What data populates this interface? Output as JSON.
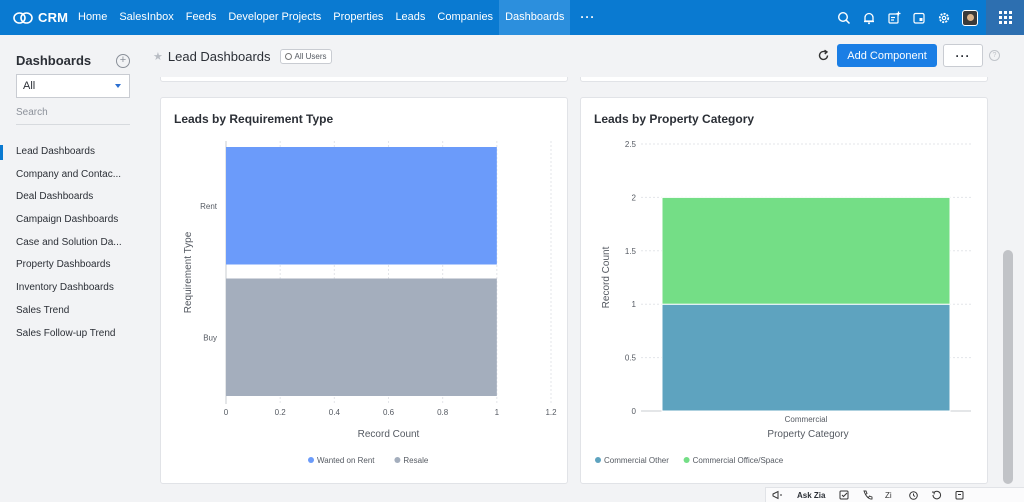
{
  "brand": {
    "name": "CRM"
  },
  "nav": {
    "items": [
      {
        "label": "Home",
        "active": false
      },
      {
        "label": "SalesInbox",
        "active": false
      },
      {
        "label": "Feeds",
        "active": false
      },
      {
        "label": "Developer Projects",
        "active": false
      },
      {
        "label": "Properties",
        "active": false
      },
      {
        "label": "Leads",
        "active": false
      },
      {
        "label": "Companies",
        "active": false
      },
      {
        "label": "Dashboards",
        "active": true
      }
    ],
    "more": "···"
  },
  "sidebar": {
    "title": "Dashboards",
    "filter_value": "All",
    "search_placeholder": "Search",
    "items": [
      {
        "label": "Lead Dashboards",
        "active": true
      },
      {
        "label": "Company and Contac...",
        "active": false
      },
      {
        "label": "Deal Dashboards",
        "active": false
      },
      {
        "label": "Campaign Dashboards",
        "active": false
      },
      {
        "label": "Case and Solution Da...",
        "active": false
      },
      {
        "label": "Property Dashboards",
        "active": false
      },
      {
        "label": "Inventory Dashboards",
        "active": false
      },
      {
        "label": "Sales Trend",
        "active": false
      },
      {
        "label": "Sales Follow-up Trend",
        "active": false
      }
    ]
  },
  "header": {
    "title": "Lead Dashboards",
    "visibility": "All Users",
    "add_button": "Add Component",
    "more": "···",
    "help": "?"
  },
  "bottom_bar": {
    "ask_zia": "Ask Zia"
  },
  "colors": {
    "nav_bg": "#0a7ad1",
    "accent": "#1a7ee5",
    "wanted_on_rent": "#6b9bfa",
    "resale": "#a4aebd",
    "commercial_other": "#5ea3bf",
    "commercial_office": "#74de86"
  },
  "chart_data": [
    {
      "type": "bar",
      "orientation": "horizontal",
      "stacked": true,
      "title": "Leads by Requirement Type",
      "xlabel": "Record Count",
      "ylabel": "Requirement Type",
      "categories": [
        "Rent",
        "Buy"
      ],
      "series": [
        {
          "name": "Wanted on Rent",
          "values": [
            1,
            0
          ],
          "color": "#6b9bfa"
        },
        {
          "name": "Resale",
          "values": [
            0,
            1
          ],
          "color": "#a4aebd"
        }
      ],
      "xlim": [
        0,
        1.2
      ],
      "xticks": [
        "0",
        "0.2",
        "0.4",
        "0.6",
        "0.8",
        "1",
        "1.2"
      ],
      "grid": true,
      "legend": "bottom"
    },
    {
      "type": "bar",
      "orientation": "vertical",
      "stacked": true,
      "title": "Leads by Property Category",
      "xlabel": "Property Category",
      "ylabel": "Record Count",
      "categories": [
        "Commercial"
      ],
      "series": [
        {
          "name": "Commercial Other",
          "values": [
            1
          ],
          "color": "#5ea3bf"
        },
        {
          "name": "Commercial Office/Space",
          "values": [
            1
          ],
          "color": "#74de86"
        }
      ],
      "ylim": [
        0,
        2.5
      ],
      "yticks": [
        "0",
        "0.5",
        "1",
        "1.5",
        "2",
        "2.5"
      ],
      "grid": true,
      "legend": "bottom"
    }
  ]
}
